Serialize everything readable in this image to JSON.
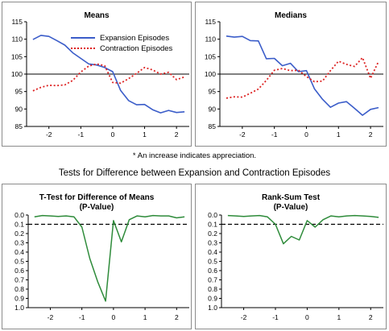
{
  "note": "* An increase indicates appreciation.",
  "section_title": "Tests for Difference between Expansion and Contraction Episodes",
  "colors": {
    "expansion": "#3b5dc9",
    "contraction": "#dd2222",
    "pvalue": "#2e8b3a",
    "reference": "#000000"
  },
  "chart_data": [
    {
      "type": "line",
      "title": "Means",
      "ylim": [
        85,
        115
      ],
      "yticks": [
        85,
        90,
        95,
        100,
        105,
        110,
        115
      ],
      "xlim": [
        -2.7,
        2.4
      ],
      "xticks": [
        -2,
        -1,
        0,
        1,
        2
      ],
      "reference_line": 100,
      "legend_position": "top-right",
      "series": [
        {
          "name": "Expansion Episodes",
          "style": "solid",
          "x": [
            -2.5,
            -2.25,
            -2,
            -1.75,
            -1.5,
            -1.25,
            -1,
            -0.75,
            -0.5,
            -0.25,
            0,
            0.25,
            0.5,
            0.75,
            1,
            1.25,
            1.5,
            1.75,
            2,
            2.25
          ],
          "values": [
            109.9,
            111.1,
            110.8,
            109.6,
            108.3,
            106.1,
            104.5,
            102.9,
            102.6,
            101.9,
            100.7,
            95.3,
            92.4,
            91.2,
            91.3,
            89.8,
            88.9,
            89.6,
            89.0,
            89.2
          ]
        },
        {
          "name": "Contraction Episodes",
          "style": "dotted",
          "x": [
            -2.5,
            -2.25,
            -2,
            -1.75,
            -1.5,
            -1.25,
            -1,
            -0.75,
            -0.5,
            -0.25,
            0,
            0.25,
            0.5,
            0.75,
            1,
            1.25,
            1.5,
            1.75,
            2,
            2.25
          ],
          "values": [
            95.2,
            96.2,
            96.8,
            96.7,
            96.9,
            98.2,
            100.6,
            102.3,
            102.9,
            102.4,
            97.6,
            97.4,
            98.7,
            100.2,
            101.9,
            101.2,
            100.0,
            100.5,
            98.4,
            99.2
          ]
        }
      ]
    },
    {
      "type": "line",
      "title": "Medians",
      "ylim": [
        85,
        115
      ],
      "yticks": [
        85,
        90,
        95,
        100,
        105,
        110,
        115
      ],
      "xlim": [
        -2.7,
        2.4
      ],
      "xticks": [
        -2,
        -1,
        0,
        1,
        2
      ],
      "reference_line": 100,
      "series": [
        {
          "name": "Expansion Episodes",
          "style": "solid",
          "x": [
            -2.5,
            -2.25,
            -2,
            -1.75,
            -1.5,
            -1.25,
            -1,
            -0.75,
            -0.5,
            -0.25,
            0,
            0.25,
            0.5,
            0.75,
            1,
            1.25,
            1.5,
            1.75,
            2,
            2.25
          ],
          "values": [
            110.9,
            110.6,
            110.8,
            109.6,
            109.5,
            104.4,
            104.5,
            102.4,
            103.1,
            100.7,
            101.0,
            95.8,
            92.8,
            90.5,
            91.7,
            92.1,
            90.2,
            88.2,
            89.9,
            90.4
          ]
        },
        {
          "name": "Contraction Episodes",
          "style": "dotted",
          "x": [
            -2.5,
            -2.25,
            -2,
            -1.75,
            -1.5,
            -1.25,
            -1,
            -0.75,
            -0.5,
            -0.25,
            0,
            0.25,
            0.5,
            0.75,
            1,
            1.25,
            1.5,
            1.75,
            2,
            2.25
          ],
          "values": [
            93.1,
            93.5,
            93.4,
            94.5,
            95.7,
            98.2,
            101.1,
            101.6,
            101.0,
            101.1,
            99.3,
            97.8,
            98.0,
            101.0,
            103.7,
            102.8,
            102.2,
            104.7,
            98.8,
            103.6
          ]
        }
      ]
    },
    {
      "type": "line",
      "title": "T-Test for Difference of Means",
      "subtitle": "(P-Value)",
      "ylim": [
        0.0,
        1.0
      ],
      "y_reversed": true,
      "yticks": [
        "0.0",
        "0.1",
        "0.2",
        "0.3",
        "0.4",
        "0.5",
        "0.6",
        "0.7",
        "0.8",
        "0.9",
        "1.0"
      ],
      "xlim": [
        -2.7,
        2.4
      ],
      "xticks": [
        -2,
        -1,
        0,
        1,
        2
      ],
      "reference_line": 0.1,
      "series": [
        {
          "style": "solid",
          "x": [
            -2.5,
            -2.25,
            -2,
            -1.75,
            -1.5,
            -1.25,
            -1,
            -0.75,
            -0.5,
            -0.25,
            0,
            0.25,
            0.5,
            0.75,
            1,
            1.25,
            1.5,
            1.75,
            2,
            2.25
          ],
          "values": [
            0.02,
            0.005,
            0.01,
            0.015,
            0.01,
            0.02,
            0.13,
            0.47,
            0.72,
            0.93,
            0.06,
            0.29,
            0.05,
            0.01,
            0.02,
            0.005,
            0.01,
            0.01,
            0.03,
            0.02
          ]
        }
      ]
    },
    {
      "type": "line",
      "title": "Rank-Sum Test",
      "subtitle": "(P-Value)",
      "ylim": [
        0.0,
        1.0
      ],
      "y_reversed": true,
      "yticks": [
        "0.0",
        "0.1",
        "0.2",
        "0.3",
        "0.4",
        "0.5",
        "0.6",
        "0.7",
        "0.8",
        "0.9",
        "1.0"
      ],
      "xlim": [
        -2.7,
        2.4
      ],
      "xticks": [
        -2,
        -1,
        0,
        1,
        2
      ],
      "reference_line": 0.1,
      "series": [
        {
          "style": "solid",
          "x": [
            -2.5,
            -2.25,
            -2,
            -1.75,
            -1.5,
            -1.25,
            -1,
            -0.75,
            -0.5,
            -0.25,
            0,
            0.25,
            0.5,
            0.75,
            1,
            1.25,
            1.5,
            1.75,
            2,
            2.25
          ],
          "values": [
            0.005,
            0.01,
            0.015,
            0.01,
            0.005,
            0.02,
            0.1,
            0.31,
            0.23,
            0.27,
            0.06,
            0.13,
            0.05,
            0.01,
            0.02,
            0.01,
            0.005,
            0.01,
            0.015,
            0.025
          ]
        }
      ]
    }
  ]
}
